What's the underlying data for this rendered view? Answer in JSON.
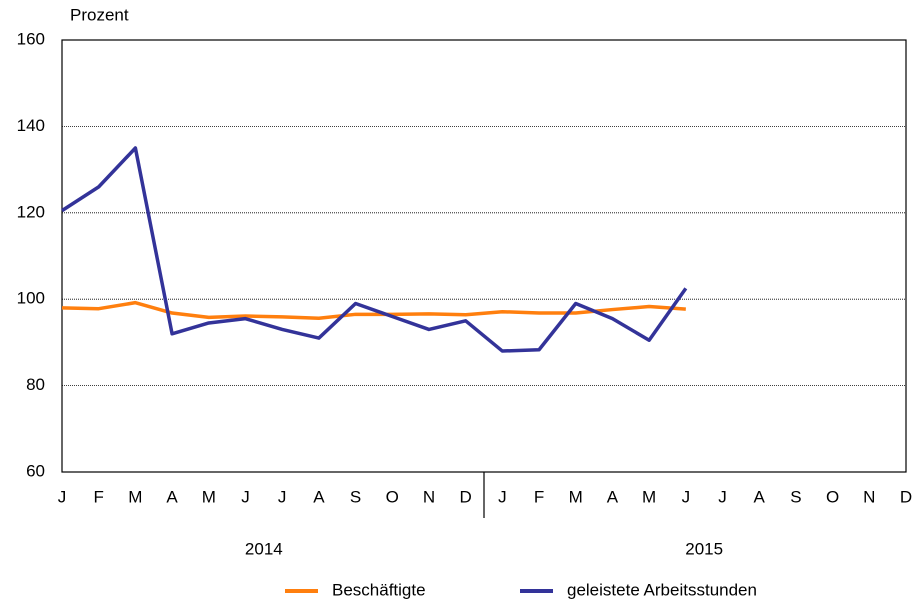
{
  "chart_data": {
    "type": "line",
    "y_label": "Prozent",
    "categories": [
      "J",
      "F",
      "M",
      "A",
      "M",
      "J",
      "J",
      "A",
      "S",
      "O",
      "N",
      "D",
      "J",
      "F",
      "M",
      "A",
      "M",
      "J",
      "J",
      "A",
      "S",
      "O",
      "N",
      "D"
    ],
    "years": [
      "2014",
      "2015"
    ],
    "series": [
      {
        "name": "Beschäftigte",
        "color": "#ff7f0e",
        "values": [
          98,
          97.8,
          99.2,
          96.8,
          95.8,
          96.1,
          95.9,
          95.6,
          96.5,
          96.5,
          96.6,
          96.4,
          97.1,
          96.8,
          96.8,
          97.6,
          98.3,
          97.7,
          null,
          null,
          null,
          null,
          null,
          null
        ]
      },
      {
        "name": "geleistete Arbeitsstunden",
        "color": "#333399",
        "values": [
          120.5,
          126,
          135,
          92,
          94.5,
          95.5,
          93,
          91,
          99,
          96,
          93,
          95,
          88,
          88.3,
          99,
          95.5,
          90.5,
          102.5,
          null,
          null,
          null,
          null,
          null,
          null
        ]
      }
    ],
    "ylim": [
      60,
      160
    ],
    "yticks": [
      60,
      80,
      100,
      120,
      140,
      160
    ],
    "grid": true
  }
}
